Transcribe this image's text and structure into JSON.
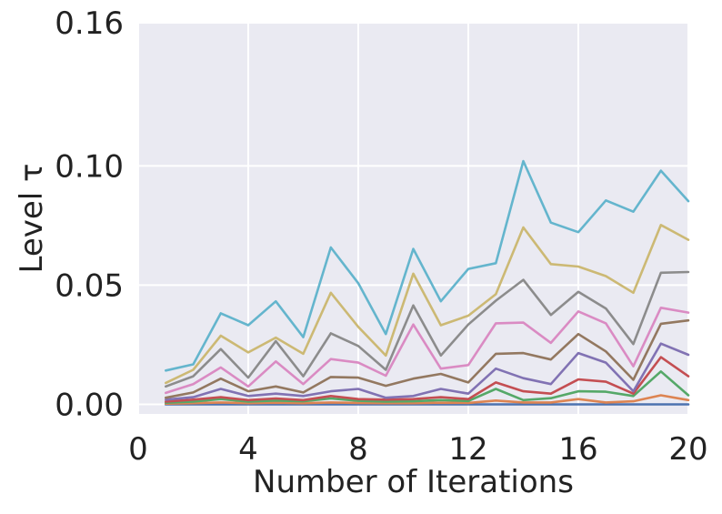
{
  "chart_data": {
    "type": "line",
    "xlabel": "Number of Iterations",
    "ylabel": "Level τ",
    "xlim": [
      0,
      20
    ],
    "ylim": [
      -0.004,
      0.16
    ],
    "xticks": [
      0,
      4,
      8,
      12,
      16,
      20
    ],
    "xtick_labels": [
      "0",
      "4",
      "8",
      "12",
      "16",
      "20"
    ],
    "yticks": [
      0.0,
      0.05,
      0.1,
      0.16
    ],
    "ytick_labels": [
      "0.00",
      "0.05",
      "0.10",
      "0.16"
    ],
    "grid": true,
    "legend": "none",
    "x": [
      1,
      2,
      3,
      4,
      5,
      6,
      7,
      8,
      9,
      10,
      11,
      12,
      13,
      14,
      15,
      16,
      17,
      18,
      19,
      20
    ],
    "series": [
      {
        "color": "#4c72b0",
        "values": [
          0.0,
          0.0,
          0.0,
          0.0,
          0.0,
          0.0,
          0.0,
          0.0,
          0.0,
          0.0,
          0.0,
          0.0,
          0.0,
          0.0,
          0.0,
          0.0,
          0.0,
          0.0,
          0.0,
          0.0
        ]
      },
      {
        "color": "#dd8452",
        "values": [
          0.0003,
          0.0005,
          0.0008,
          0.0005,
          0.0007,
          0.0005,
          0.0008,
          0.0006,
          0.0005,
          0.0005,
          0.0007,
          0.0006,
          0.0016,
          0.0008,
          0.0008,
          0.0022,
          0.0008,
          0.0013,
          0.0038,
          0.0018
        ]
      },
      {
        "color": "#55a868",
        "values": [
          0.0007,
          0.0012,
          0.0022,
          0.0012,
          0.0016,
          0.0013,
          0.0025,
          0.0015,
          0.0012,
          0.0013,
          0.0018,
          0.0014,
          0.0065,
          0.0018,
          0.0026,
          0.0055,
          0.0053,
          0.0035,
          0.0138,
          0.0038
        ]
      },
      {
        "color": "#c44e52",
        "values": [
          0.0012,
          0.002,
          0.003,
          0.0018,
          0.0025,
          0.0018,
          0.0035,
          0.0022,
          0.002,
          0.0022,
          0.003,
          0.0022,
          0.0092,
          0.0055,
          0.0045,
          0.0105,
          0.0095,
          0.0045,
          0.0198,
          0.0118
        ]
      },
      {
        "color": "#8172b3",
        "values": [
          0.002,
          0.003,
          0.0065,
          0.0035,
          0.0045,
          0.0035,
          0.0055,
          0.0065,
          0.0028,
          0.0035,
          0.0065,
          0.0045,
          0.015,
          0.011,
          0.0085,
          0.0215,
          0.0175,
          0.0055,
          0.0255,
          0.0208
        ]
      },
      {
        "color": "#937860",
        "values": [
          0.0028,
          0.005,
          0.0108,
          0.0055,
          0.0075,
          0.005,
          0.0115,
          0.0112,
          0.0078,
          0.0108,
          0.0128,
          0.0092,
          0.0212,
          0.0215,
          0.0188,
          0.0295,
          0.0222,
          0.0103,
          0.0338,
          0.0352
        ]
      },
      {
        "color": "#da8bc3",
        "values": [
          0.0048,
          0.0085,
          0.0155,
          0.0075,
          0.018,
          0.0085,
          0.019,
          0.0175,
          0.012,
          0.0335,
          0.015,
          0.0165,
          0.034,
          0.0343,
          0.0258,
          0.039,
          0.034,
          0.016,
          0.0405,
          0.0385
        ]
      },
      {
        "color": "#8c8c8c",
        "values": [
          0.0075,
          0.0118,
          0.0232,
          0.0112,
          0.0265,
          0.0118,
          0.0298,
          0.0245,
          0.0145,
          0.0415,
          0.0205,
          0.0335,
          0.0435,
          0.0522,
          0.0375,
          0.0472,
          0.0402,
          0.0253,
          0.0552,
          0.0555
        ]
      },
      {
        "color": "#ccb974",
        "values": [
          0.009,
          0.0145,
          0.0288,
          0.0218,
          0.028,
          0.0212,
          0.0468,
          0.0325,
          0.0205,
          0.0548,
          0.0332,
          0.0372,
          0.0462,
          0.0742,
          0.0588,
          0.0578,
          0.0538,
          0.0468,
          0.0752,
          0.069
        ]
      },
      {
        "color": "#64b5cd",
        "values": [
          0.0142,
          0.0168,
          0.0382,
          0.0332,
          0.0432,
          0.0282,
          0.0658,
          0.0508,
          0.0295,
          0.0652,
          0.0432,
          0.0568,
          0.0592,
          0.102,
          0.0762,
          0.0722,
          0.0855,
          0.0808,
          0.098,
          0.0852
        ]
      }
    ]
  }
}
